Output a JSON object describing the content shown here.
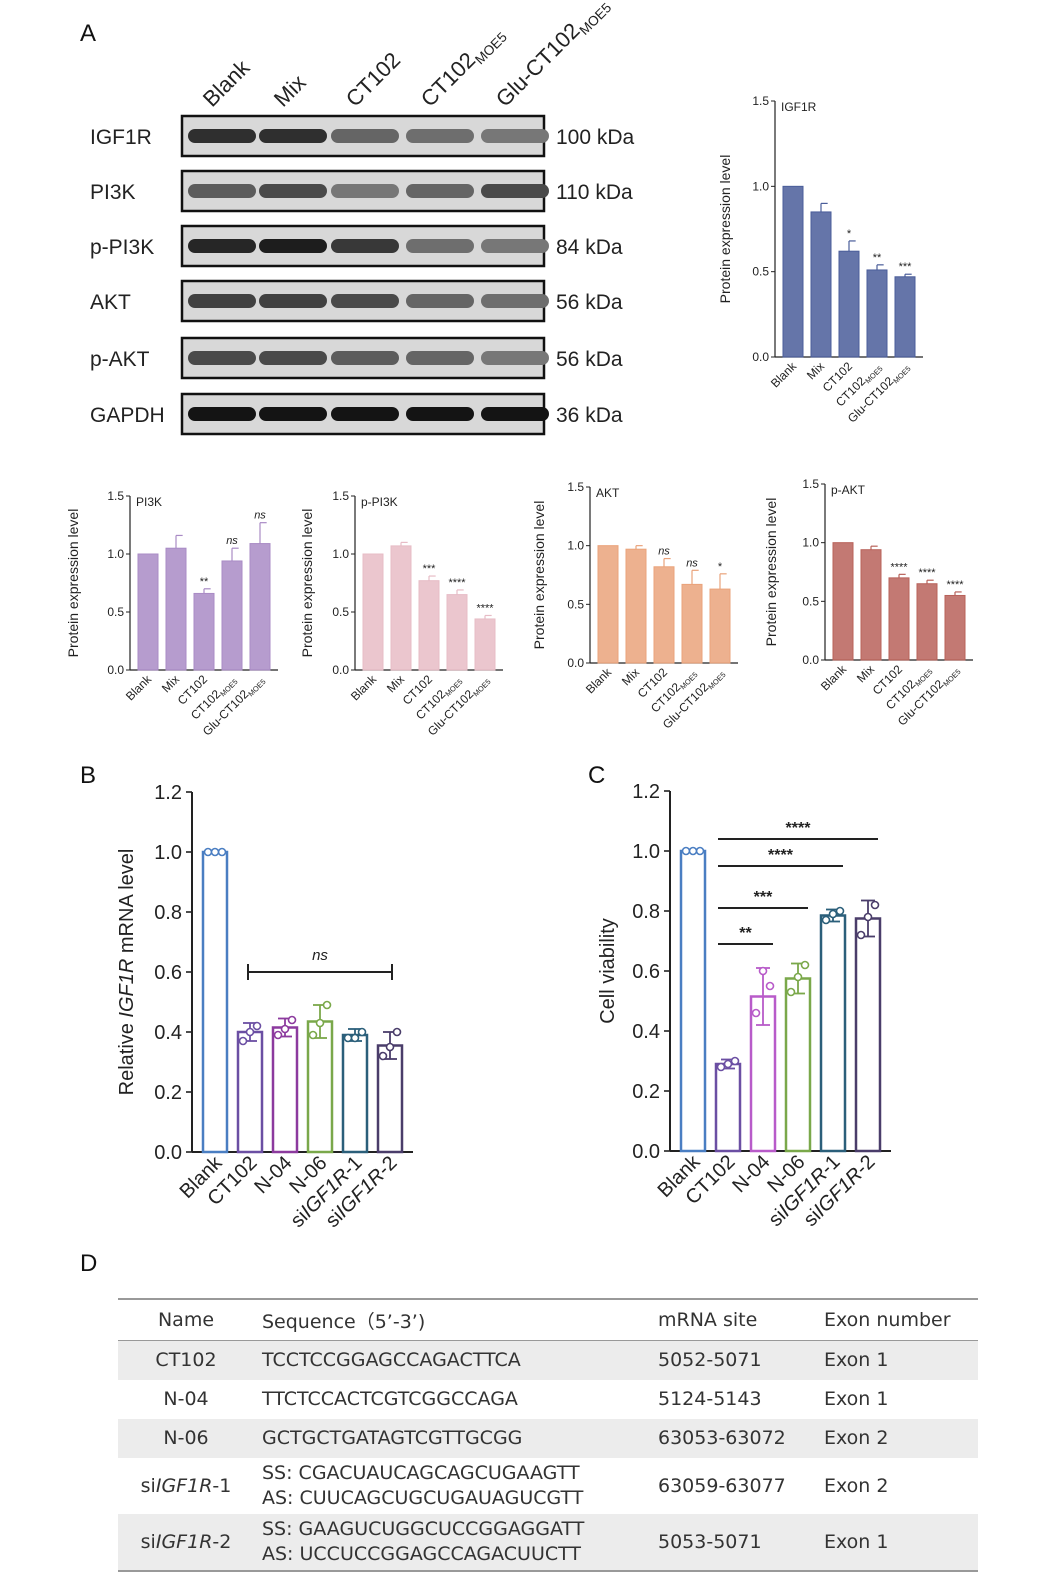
{
  "panels": {
    "a": "A",
    "b": "B",
    "c": "C",
    "d": "D"
  },
  "western_blot": {
    "lanes": [
      {
        "text": "Blank",
        "sub": ""
      },
      {
        "text": "Mix",
        "sub": ""
      },
      {
        "text": "CT102",
        "sub": ""
      },
      {
        "text": "CT102",
        "sub": "MOE5"
      },
      {
        "text": "Glu-CT102",
        "sub": "MOE5"
      }
    ],
    "rows": [
      {
        "protein": "IGF1R",
        "size": "100 kDa",
        "band_intensity": [
          0.85,
          0.85,
          0.55,
          0.5,
          0.45
        ]
      },
      {
        "protein": "PI3K",
        "size": "110 kDa",
        "band_intensity": [
          0.6,
          0.7,
          0.45,
          0.55,
          0.7
        ]
      },
      {
        "protein": "p-PI3K",
        "size": "84 kDa",
        "band_intensity": [
          0.9,
          0.95,
          0.8,
          0.5,
          0.45
        ]
      },
      {
        "protein": "AKT",
        "size": "56 kDa",
        "band_intensity": [
          0.75,
          0.75,
          0.7,
          0.55,
          0.5
        ]
      },
      {
        "protein": "p-AKT",
        "size": "56 kDa",
        "band_intensity": [
          0.7,
          0.7,
          0.6,
          0.55,
          0.45
        ]
      },
      {
        "protein": "GAPDH",
        "size": "36 kDa",
        "band_intensity": [
          1.0,
          1.0,
          1.0,
          1.0,
          1.0
        ]
      }
    ]
  },
  "chart_data": [
    {
      "id": "igf1r",
      "type": "bar",
      "title": "IGF1R",
      "ylabel": "Protein expression level",
      "ylim": [
        0,
        1.5
      ],
      "yticks": [
        "0.0",
        "0.5",
        "1.0",
        "1.5"
      ],
      "categories": [
        "Blank",
        "Mix",
        "CT102",
        "CT102MOE5",
        "Glu-CT102MOE5"
      ],
      "values": [
        1.0,
        0.85,
        0.62,
        0.51,
        0.47
      ],
      "errors": [
        0,
        0.05,
        0.06,
        0.03,
        0.015
      ],
      "significance": [
        "",
        "",
        "*",
        "**",
        "***"
      ],
      "color": "#4a5d9a"
    },
    {
      "id": "pi3k",
      "type": "bar",
      "title": "PI3K",
      "ylabel": "Protein expression level",
      "ylim": [
        0,
        1.5
      ],
      "yticks": [
        "0.0",
        "0.5",
        "1.0",
        "1.5"
      ],
      "categories": [
        "Blank",
        "Mix",
        "CT102",
        "CT102MOE5",
        "Glu-CT102MOE5"
      ],
      "values": [
        1.0,
        1.05,
        0.66,
        0.94,
        1.09
      ],
      "errors": [
        0,
        0.11,
        0.04,
        0.11,
        0.18
      ],
      "significance": [
        "",
        "",
        "**",
        "ns",
        "ns"
      ],
      "color": "#a98bc5"
    },
    {
      "id": "ppi3k",
      "type": "bar",
      "title": "p-PI3K",
      "ylabel": "Protein expression level",
      "ylim": [
        0,
        1.5
      ],
      "yticks": [
        "0.0",
        "0.5",
        "1.0",
        "1.5"
      ],
      "categories": [
        "Blank",
        "Mix",
        "CT102",
        "CT102MOE5",
        "Glu-CT102MOE5"
      ],
      "values": [
        1.0,
        1.07,
        0.77,
        0.65,
        0.44
      ],
      "errors": [
        0,
        0.03,
        0.04,
        0.04,
        0.03
      ],
      "significance": [
        "",
        "",
        "***",
        "****",
        "****"
      ],
      "color": "#e7bcc6"
    },
    {
      "id": "akt",
      "type": "bar",
      "title": "AKT",
      "ylabel": "Protein expression level",
      "ylim": [
        0,
        1.5
      ],
      "yticks": [
        "0.0",
        "0.5",
        "1.0",
        "1.5"
      ],
      "categories": [
        "Blank",
        "Mix",
        "CT102",
        "CT102MOE5",
        "Glu-CT102MOE5"
      ],
      "values": [
        1.0,
        0.97,
        0.82,
        0.67,
        0.63
      ],
      "errors": [
        0,
        0.03,
        0.07,
        0.12,
        0.13
      ],
      "significance": [
        "",
        "",
        "ns",
        "ns",
        "*"
      ],
      "color": "#eaa37b"
    },
    {
      "id": "pakt",
      "type": "bar",
      "title": "p-AKT",
      "ylabel": "Protein expression level",
      "ylim": [
        0,
        1.5
      ],
      "yticks": [
        "0.0",
        "0.5",
        "1.0",
        "1.5"
      ],
      "categories": [
        "Blank",
        "Mix",
        "CT102",
        "CT102MOE5",
        "Glu-CT102MOE5"
      ],
      "values": [
        1.0,
        0.94,
        0.7,
        0.65,
        0.55
      ],
      "errors": [
        0,
        0.03,
        0.03,
        0.03,
        0.03
      ],
      "significance": [
        "",
        "",
        "****",
        "****",
        "****"
      ],
      "color": "#b8625a"
    },
    {
      "id": "mrna",
      "type": "bar",
      "title": "",
      "ylabel_parts": [
        "Relative ",
        "IGF1R",
        " mRNA level"
      ],
      "ylim": [
        0,
        1.2
      ],
      "yticks": [
        "0.0",
        "0.2",
        "0.4",
        "0.6",
        "0.8",
        "1.0",
        "1.2"
      ],
      "categories": [
        "Blank",
        "CT102",
        "N-04",
        "N-06",
        "siIGF1R-1",
        "siIGF1R-2"
      ],
      "values": [
        1.0,
        0.4,
        0.415,
        0.435,
        0.39,
        0.355
      ],
      "errors": [
        0,
        0.03,
        0.03,
        0.055,
        0.02,
        0.045
      ],
      "points": [
        [
          1.0,
          1.0,
          1.0
        ],
        [
          0.37,
          0.42,
          0.4
        ],
        [
          0.39,
          0.44,
          0.41
        ],
        [
          0.39,
          0.49,
          0.43
        ],
        [
          0.38,
          0.4,
          0.38
        ],
        [
          0.32,
          0.4,
          0.35
        ]
      ],
      "colors": [
        "#4a7ec2",
        "#6b4fa3",
        "#8c3a9e",
        "#7aa84a",
        "#2b5f7a",
        "#4a3d6a"
      ],
      "annotation": {
        "label": "ns",
        "from": 1,
        "to": 5,
        "y": 0.6
      }
    },
    {
      "id": "viability",
      "type": "bar",
      "title": "",
      "ylabel": "Cell viability",
      "ylim": [
        0,
        1.2
      ],
      "yticks": [
        "0.0",
        "0.2",
        "0.4",
        "0.6",
        "0.8",
        "1.0",
        "1.2"
      ],
      "categories": [
        "Blank",
        "CT102",
        "N-04",
        "N-06",
        "siIGF1R-1",
        "siIGF1R-2"
      ],
      "values": [
        1.0,
        0.29,
        0.515,
        0.575,
        0.785,
        0.775
      ],
      "errors": [
        0,
        0.015,
        0.095,
        0.05,
        0.02,
        0.06
      ],
      "points": [
        [
          1.0,
          1.0,
          1.0
        ],
        [
          0.28,
          0.3,
          0.29
        ],
        [
          0.46,
          0.55,
          0.6
        ],
        [
          0.53,
          0.62,
          0.58
        ],
        [
          0.77,
          0.8,
          0.79
        ],
        [
          0.72,
          0.82,
          0.78
        ]
      ],
      "colors": [
        "#4a7ec2",
        "#6b4fa3",
        "#b85bc9",
        "#7aa84a",
        "#2b5f7a",
        "#4a3d6a"
      ],
      "comparisons": [
        {
          "label": "**",
          "from": 1,
          "to": 2,
          "y": 0.69
        },
        {
          "label": "***",
          "from": 1,
          "to": 3,
          "y": 0.81
        },
        {
          "label": "****",
          "from": 1,
          "to": 4,
          "y": 0.95
        },
        {
          "label": "****",
          "from": 1,
          "to": 5,
          "y": 1.04
        }
      ]
    }
  ],
  "table": {
    "headers": [
      "Name",
      "Sequence（5’-3’)",
      "mRNA site",
      "Exon number"
    ],
    "rows": [
      {
        "name_prefix": "",
        "name_italic": "CT102",
        "name_suffix": "",
        "name_plain": true,
        "seq1": "TCCTCCGGAGCCAGACTTCA",
        "seq2": "",
        "site": "5052-5071",
        "exon": "Exon 1"
      },
      {
        "name_prefix": "",
        "name_italic": "N-04",
        "name_suffix": "",
        "name_plain": true,
        "seq1": "TTCTCCACTCGTCGGCCAGA",
        "seq2": "",
        "site": "5124-5143",
        "exon": "Exon 1"
      },
      {
        "name_prefix": "",
        "name_italic": "N-06",
        "name_suffix": "",
        "name_plain": true,
        "seq1": "GCTGCTGATAGTCGTTGCGG",
        "seq2": "",
        "site": "63053-63072",
        "exon": "Exon 2"
      },
      {
        "name_prefix": "si",
        "name_italic": "IGF1R",
        "name_suffix": "-1",
        "name_plain": false,
        "seq1": "SS: CGACUAUCAGCAGCUGAAGTT",
        "seq2": "AS: CUUCAGCUGCUGAUAGUCGTT",
        "site": "63059-63077",
        "exon": "Exon 2"
      },
      {
        "name_prefix": "si",
        "name_italic": "IGF1R",
        "name_suffix": "-2",
        "name_plain": false,
        "seq1": "SS: GAAGUCUGGCUCCGGAGGATT",
        "seq2": "AS: UCCUCCGGAGCCAGACUUCTT",
        "site": "5053-5071",
        "exon": "Exon 1"
      }
    ]
  }
}
